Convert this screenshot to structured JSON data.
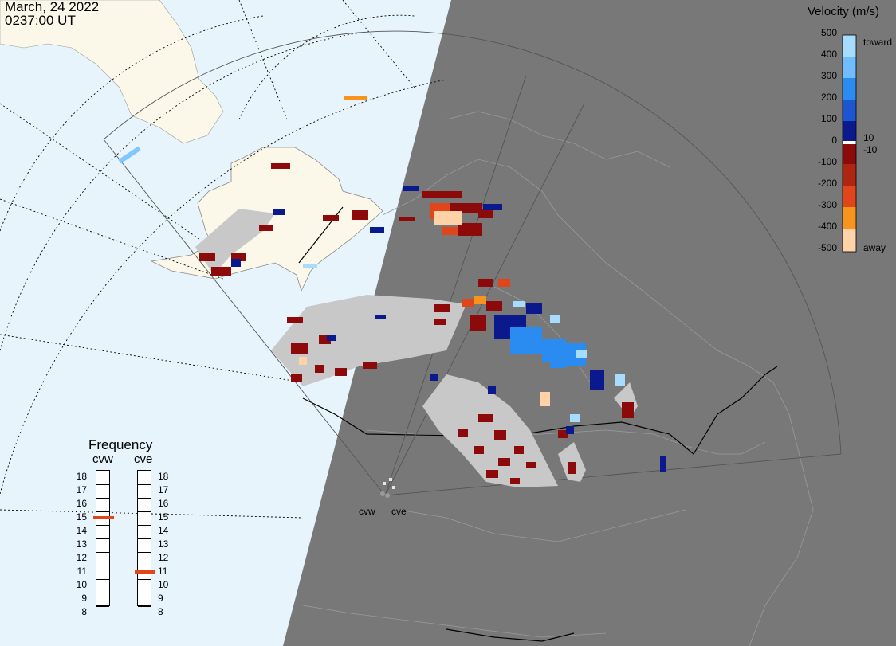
{
  "header": {
    "date": "March, 24 2022",
    "time": "0237:00 UT"
  },
  "colorbar": {
    "title": "Velocity (m/s)",
    "ticks": [
      "500",
      "400",
      "300",
      "200",
      "100",
      "0",
      "-100",
      "-200",
      "-300",
      "-400",
      "-500"
    ],
    "inner_ticks": [
      "10",
      "-10"
    ],
    "toward_label": "toward",
    "away_label": "away",
    "colors": {
      "toward_high": "#a8dcff",
      "toward_mid": "#2a8cf0",
      "toward_low": "#0a1a8c",
      "away_low": "#8c0a0a",
      "away_mid": "#e0461a",
      "away_high": "#ffd2a8",
      "ground_scatter": "#c8c8c8"
    }
  },
  "frequency": {
    "title": "Frequency",
    "left_radar": "cvw",
    "right_radar": "cve",
    "levels": [
      "18",
      "17",
      "16",
      "15",
      "14",
      "13",
      "12",
      "11",
      "10",
      "9",
      "8"
    ],
    "cvw_selected": 15,
    "cve_selected": 11
  },
  "radars": {
    "west": "cvw",
    "east": "cve"
  }
}
